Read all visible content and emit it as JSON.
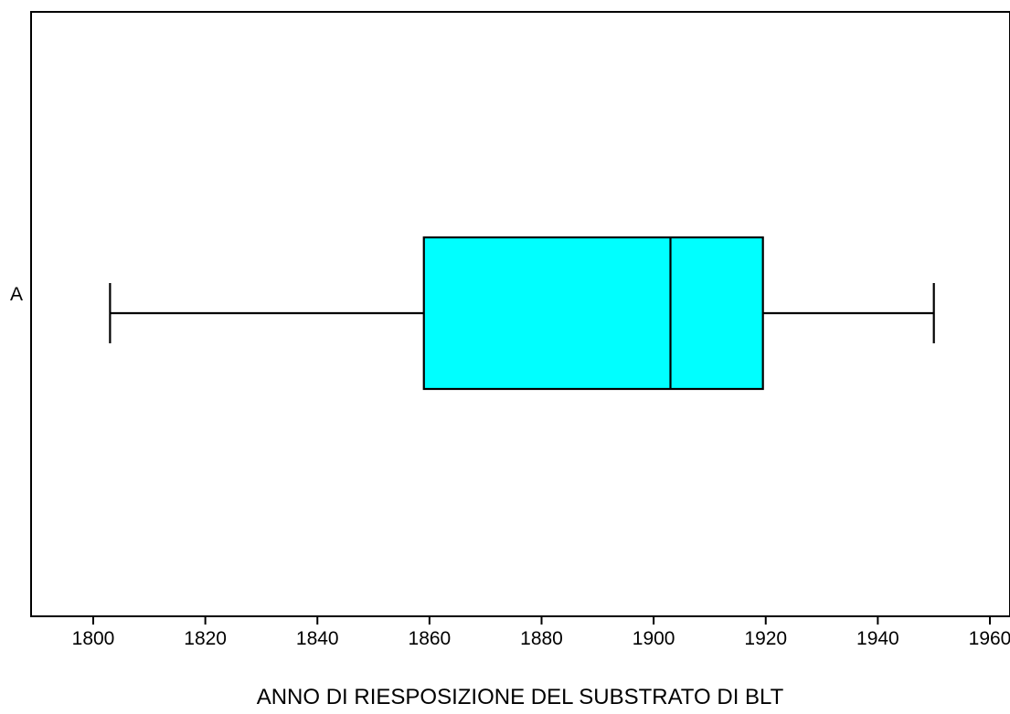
{
  "chart_data": {
    "type": "boxplot",
    "orientation": "horizontal",
    "title": "",
    "xlabel": "ANNO DI RIESPOSIZIONE DEL SUBSTRATO DI BLT",
    "ylabel": "",
    "xlim": [
      1788,
      1964
    ],
    "x_ticks": [
      1800,
      1820,
      1840,
      1860,
      1880,
      1900,
      1920,
      1940,
      1960
    ],
    "x_tick_labels": [
      "1800",
      "1820",
      "1840",
      "1860",
      "1880",
      "1900",
      "1920",
      "1940",
      "1960"
    ],
    "grid": false,
    "legend": "none",
    "fill_color": "#00ffff",
    "stroke_color": "#000000",
    "boxes": [
      {
        "category": "A",
        "whisker_low": 1803,
        "q1": 1859,
        "median": 1903,
        "q3": 1919.5,
        "whisker_high": 1950
      }
    ]
  }
}
